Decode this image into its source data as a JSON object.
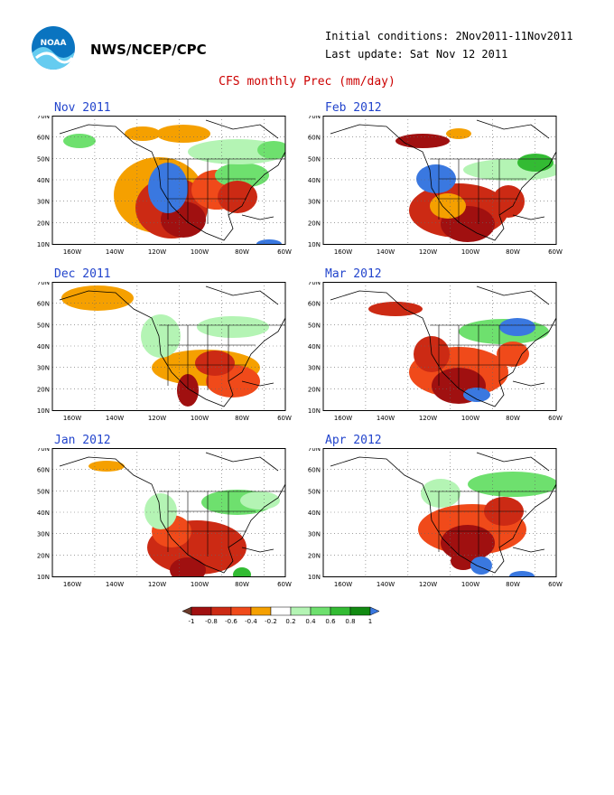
{
  "header": {
    "org": "NWS/NCEP/CPC",
    "logo_text": "NOAA",
    "initial_conditions": "Initial conditions: 2Nov2011-11Nov2011",
    "last_update": "Last update: Sat Nov 12 2011"
  },
  "title": "CFS monthly Prec (mm/day)",
  "axes": {
    "lat_labels": [
      "70N",
      "60N",
      "50N",
      "40N",
      "30N",
      "20N",
      "10N"
    ],
    "lon_labels": [
      "160W",
      "140W",
      "120W",
      "100W",
      "80W",
      "60W"
    ]
  },
  "panels": [
    {
      "title": "Nov 2011"
    },
    {
      "title": "Feb 2012"
    },
    {
      "title": "Dec 2011"
    },
    {
      "title": "Mar 2012"
    },
    {
      "title": "Jan 2012"
    },
    {
      "title": "Apr 2012"
    }
  ],
  "legend": {
    "labels": [
      "-1",
      "-0.8",
      "-0.6",
      "-0.4",
      "-0.2",
      "0.2",
      "0.4",
      "0.6",
      "0.8",
      "1"
    ],
    "colors": [
      "#6b3a2a",
      "#a01010",
      "#cc2a14",
      "#f04a1a",
      "#f5a000",
      "#ffffff",
      "#b4f4b4",
      "#6ee06e",
      "#33bb33",
      "#118a11",
      "#3a78e0"
    ]
  }
}
